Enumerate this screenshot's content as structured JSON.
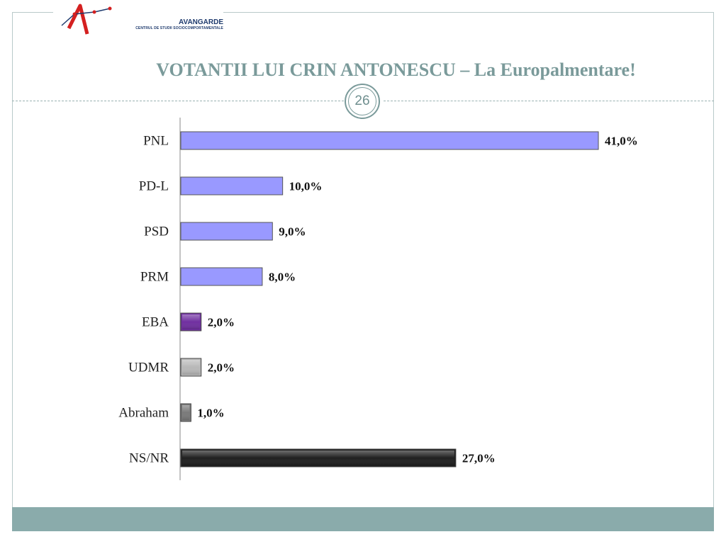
{
  "logo": {
    "name": "AVANGARDE",
    "subtitle": "CENTRUL DE STUDII SOCIOCOMPORTAMENTALE"
  },
  "slide": {
    "title": "VOTANTII LUI CRIN ANTONESCU – La Europalmentare!",
    "page_number": "26"
  },
  "colors": {
    "accent": "#7a9a9a",
    "footer": "#8aabab",
    "bar_default": "#9999ff"
  },
  "chart_data": {
    "type": "bar",
    "orientation": "horizontal",
    "categories": [
      "PNL",
      "PD-L",
      "PSD",
      "PRM",
      "EBA",
      "UDMR",
      "Abraham",
      "NS/NR"
    ],
    "values": [
      41.0,
      10.0,
      9.0,
      8.0,
      2.0,
      2.0,
      1.0,
      27.0
    ],
    "value_labels": [
      "41,0%",
      "10,0%",
      "9,0%",
      "8,0%",
      "2,0%",
      "2,0%",
      "1,0%",
      "27,0%"
    ],
    "bar_colors": [
      "#9999ff",
      "#9999ff",
      "#9999ff",
      "#9999ff",
      "#7030a0",
      "#b8b8b8",
      "#7a7a7a",
      "#202020"
    ],
    "xlim": [
      0,
      41
    ],
    "grid": false,
    "legend": false
  }
}
